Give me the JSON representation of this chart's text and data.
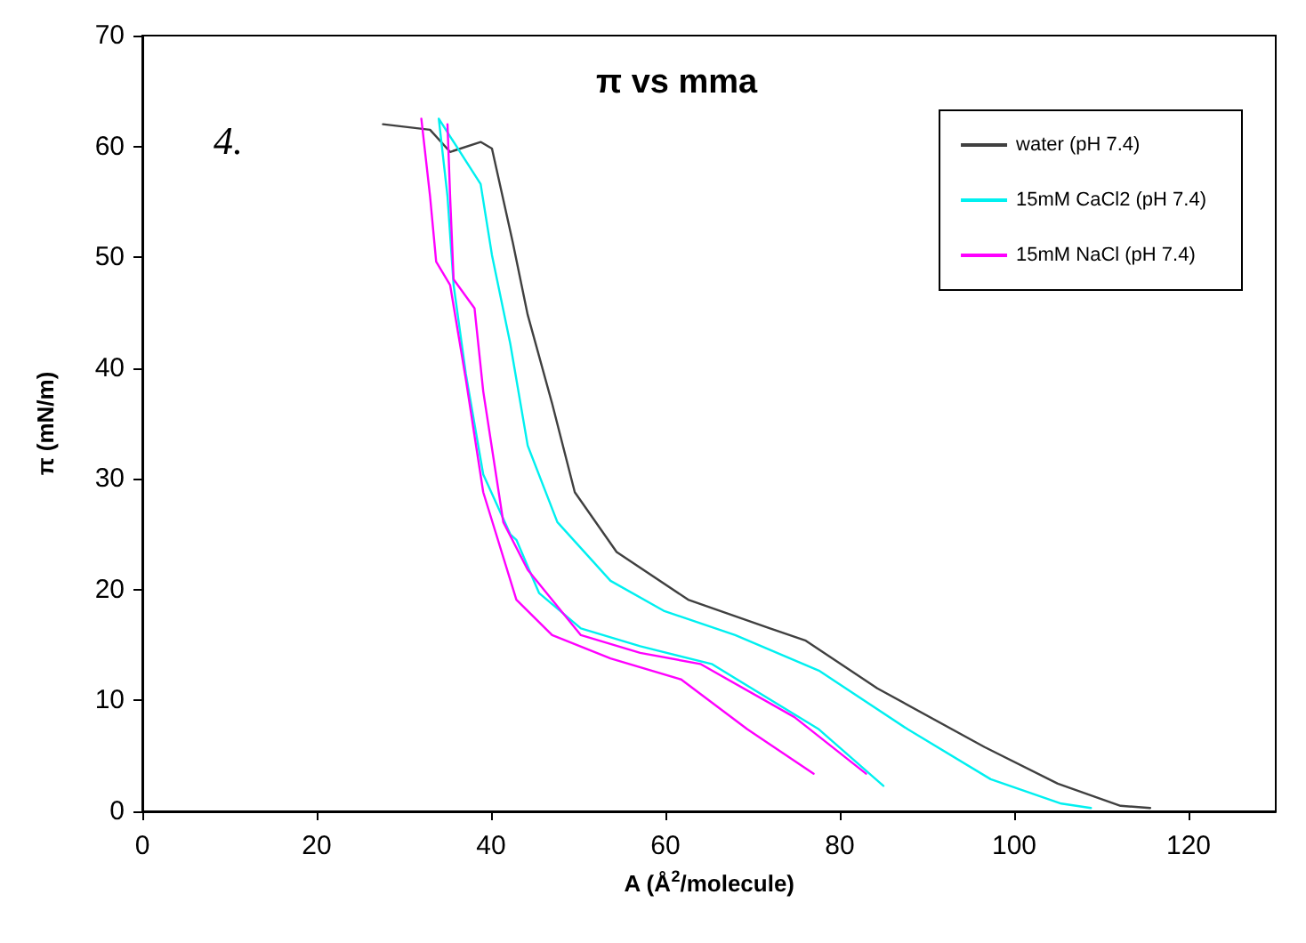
{
  "chart_data": {
    "type": "line",
    "title": "π vs mma",
    "xlabel": "A (Å$^{2}$/molecule)",
    "ylabel": "π (mN/m)",
    "annotations": [
      "4."
    ],
    "xlim": [
      0,
      130
    ],
    "xticks": [
      0,
      20,
      40,
      60,
      80,
      100,
      120
    ],
    "ylim": [
      0,
      70
    ],
    "yticks": [
      0,
      10,
      20,
      30,
      40,
      50,
      60,
      70
    ],
    "grid": false,
    "legend": "top right",
    "marker": "none",
    "line_style": "solid",
    "series": [
      {
        "name": "water (pH 7.4)",
        "color": "#404040",
        "x": [
          115.6,
          112.2,
          105,
          96.6,
          84.3,
          76.1,
          72,
          62.6,
          54.4,
          49.6,
          47,
          44.2,
          42.5,
          40.1,
          38.8,
          35.3,
          33,
          27.6
        ],
        "values": [
          0.3,
          0.5,
          2.5,
          5.8,
          11.1,
          15.4,
          16.5,
          19.1,
          23.4,
          28.8,
          36.8,
          44.8,
          51.3,
          59.8,
          60.4,
          59.5,
          61.5,
          62
        ]
      },
      {
        "name": "15mM CaCl2 (pH 7.4)",
        "color": "#00f0f0",
        "x": [
          108.8,
          105.4,
          97.3,
          87.8,
          77.6,
          68,
          59.8,
          53.7,
          47.6,
          44.2,
          42.2,
          40.1,
          38.8,
          34,
          null,
          34,
          35,
          35.7,
          37.1,
          39.1,
          42.2,
          42.9,
          45.5,
          50.3,
          57.1,
          65.3,
          77.6,
          85
        ],
        "values": [
          0.3,
          0.7,
          2.9,
          7.4,
          12.7,
          15.9,
          18.1,
          20.8,
          26.1,
          33,
          42.2,
          50.2,
          56.6,
          62.5,
          null,
          62.5,
          55.5,
          47.5,
          39.5,
          30.4,
          25,
          24.5,
          19.7,
          16.5,
          14.9,
          13.3,
          7.4,
          2.3
        ]
      },
      {
        "name": "15mM NaCl (pH 7.4)",
        "color": "#ff00ff",
        "x": [
          83,
          74.8,
          64,
          57.1,
          50.3,
          44.2,
          41.4,
          39.1,
          38.1,
          35.7,
          35.3,
          35,
          null,
          32,
          33,
          33.7,
          35.3,
          37.1,
          39.1,
          42.9,
          47,
          53.7,
          61.8,
          69.4,
          77
        ],
        "values": [
          3.4,
          8.5,
          13.3,
          14.3,
          15.9,
          21.8,
          26.1,
          37.9,
          45.4,
          48,
          55.5,
          62,
          null,
          62.5,
          55.5,
          49.6,
          47.5,
          39,
          28.8,
          19.1,
          15.9,
          13.8,
          11.9,
          7.4,
          3.4
        ]
      }
    ]
  }
}
